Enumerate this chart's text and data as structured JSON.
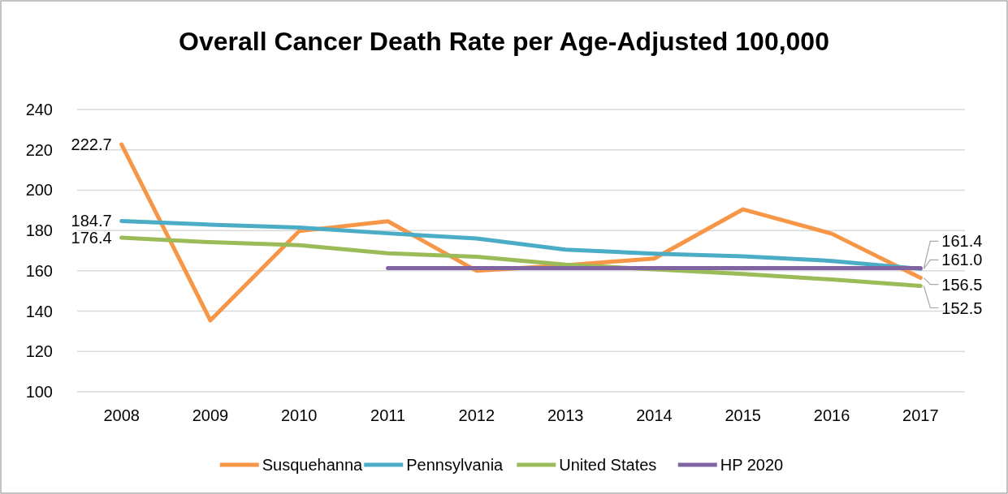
{
  "chart_data": {
    "type": "line",
    "title": "Overall Cancer Death Rate per Age-Adjusted 100,000",
    "categories": [
      "2008",
      "2009",
      "2010",
      "2011",
      "2012",
      "2013",
      "2014",
      "2015",
      "2016",
      "2017"
    ],
    "series": [
      {
        "name": "Susquehanna",
        "color": "#f79646",
        "values": [
          222.7,
          135.4,
          179.7,
          184.6,
          160.0,
          162.8,
          166.1,
          190.5,
          178.4,
          156.5
        ],
        "value_labels": [
          "222.7",
          null,
          null,
          null,
          null,
          null,
          null,
          null,
          null,
          "156.5"
        ]
      },
      {
        "name": "Pennsylvania",
        "color": "#4bacc6",
        "values": [
          184.7,
          182.9,
          181.5,
          178.6,
          176.0,
          170.5,
          168.5,
          167.2,
          164.9,
          161.0
        ],
        "value_labels": [
          "184.7",
          null,
          null,
          null,
          null,
          null,
          null,
          null,
          null,
          "161.0"
        ]
      },
      {
        "name": "United States",
        "color": "#9bbb59",
        "values": [
          176.4,
          174.2,
          172.7,
          168.7,
          167.0,
          163.1,
          160.7,
          158.4,
          155.7,
          152.5
        ],
        "value_labels": [
          "176.4",
          null,
          null,
          null,
          null,
          null,
          null,
          null,
          null,
          "152.5"
        ]
      },
      {
        "name": "HP 2020",
        "color": "#8064a2",
        "values": [
          null,
          null,
          null,
          161.4,
          161.4,
          161.4,
          161.4,
          161.4,
          161.4,
          161.4
        ],
        "value_labels": [
          null,
          null,
          null,
          null,
          null,
          null,
          null,
          null,
          null,
          "161.4"
        ]
      }
    ],
    "ylim": [
      100,
      240
    ],
    "yticks": [
      100,
      120,
      140,
      160,
      180,
      200,
      220,
      240
    ],
    "grid": "y",
    "legend": "bottom",
    "marker": "none",
    "line_style": "solid"
  }
}
